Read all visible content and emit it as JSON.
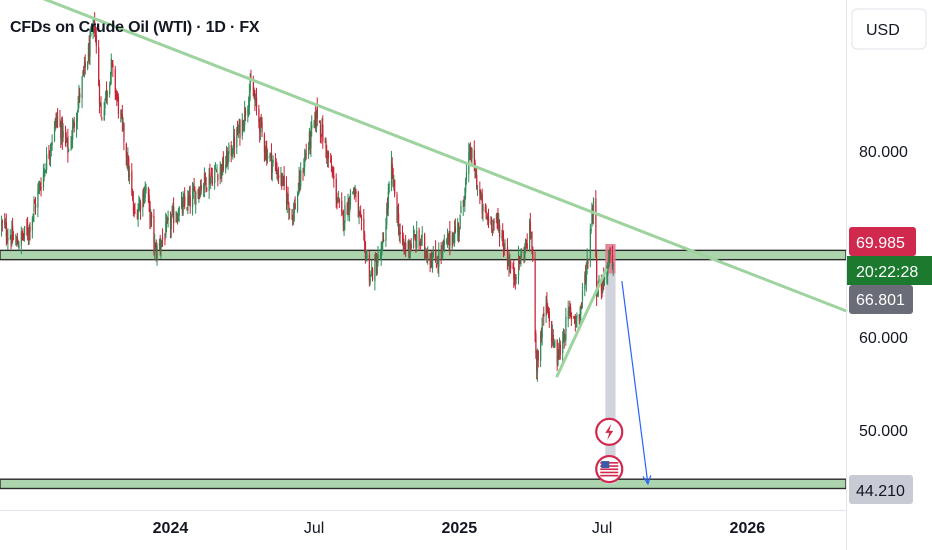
{
  "header": {
    "title": "CFDs on Crude Oil (WTI) · 1D · FX"
  },
  "price_scale": {
    "currency": "USD"
  },
  "badges": {
    "target_price": "69.985",
    "countdown": "20:22:28",
    "last_price": "66.801",
    "support_price": "44.210",
    "target_color": "#d1284e",
    "countdown_color": "#1b7a2e",
    "last_color": "#6a6d78",
    "support_color": "#c8cbd3"
  },
  "chart_data": {
    "type": "candlestick",
    "symbol": "CFDs on Crude Oil (WTI)",
    "interval": "1D",
    "source": "FX",
    "y_tick_labels": [
      "80.000",
      "60.000",
      "50.000"
    ],
    "x_tick_labels": [
      "2024",
      "Jul",
      "2025",
      "Jul",
      "2026"
    ],
    "x_tick_dates": [
      "2024-01-01",
      "2024-07-01",
      "2025-01-01",
      "2025-07-01",
      "2026-01-01"
    ],
    "ylim": [
      41.4,
      96.2
    ],
    "xlim": [
      "2023-05-30",
      "2026-05-06"
    ],
    "price_path": [
      [
        "2023-06-01",
        72.0
      ],
      [
        "2023-06-20",
        70.0
      ],
      [
        "2023-07-05",
        71.5
      ],
      [
        "2023-07-25",
        78.0
      ],
      [
        "2023-08-10",
        83.5
      ],
      [
        "2023-08-25",
        80.0
      ],
      [
        "2023-09-10",
        87.0
      ],
      [
        "2023-09-27",
        93.5
      ],
      [
        "2023-10-05",
        83.5
      ],
      [
        "2023-10-18",
        89.0
      ],
      [
        "2023-11-05",
        80.5
      ],
      [
        "2023-11-16",
        73.0
      ],
      [
        "2023-12-01",
        76.0
      ],
      [
        "2023-12-13",
        69.0
      ],
      [
        "2024-01-05",
        73.0
      ],
      [
        "2024-01-25",
        74.5
      ],
      [
        "2024-02-10",
        76.5
      ],
      [
        "2024-03-10",
        78.5
      ],
      [
        "2024-04-01",
        83.0
      ],
      [
        "2024-04-12",
        87.0
      ],
      [
        "2024-05-01",
        80.0
      ],
      [
        "2024-05-20",
        77.0
      ],
      [
        "2024-06-04",
        73.0
      ],
      [
        "2024-06-20",
        79.5
      ],
      [
        "2024-07-05",
        84.0
      ],
      [
        "2024-07-25",
        77.0
      ],
      [
        "2024-08-05",
        72.5
      ],
      [
        "2024-08-20",
        76.0
      ],
      [
        "2024-09-10",
        66.5
      ],
      [
        "2024-09-25",
        69.0
      ],
      [
        "2024-10-07",
        78.0
      ],
      [
        "2024-10-20",
        69.5
      ],
      [
        "2024-11-10",
        70.5
      ],
      [
        "2024-12-01",
        68.0
      ],
      [
        "2024-12-20",
        70.5
      ],
      [
        "2025-01-01",
        72.0
      ],
      [
        "2025-01-15",
        80.0
      ],
      [
        "2025-02-01",
        73.0
      ],
      [
        "2025-02-20",
        72.0
      ],
      [
        "2025-03-10",
        66.5
      ],
      [
        "2025-03-25",
        69.5
      ],
      [
        "2025-04-02",
        71.5
      ],
      [
        "2025-04-09",
        57.0
      ],
      [
        "2025-04-20",
        63.5
      ],
      [
        "2025-05-05",
        57.5
      ],
      [
        "2025-05-20",
        62.5
      ],
      [
        "2025-06-02",
        62.0
      ],
      [
        "2025-06-12",
        68.0
      ],
      [
        "2025-06-20",
        75.0
      ],
      [
        "2025-06-24",
        65.5
      ],
      [
        "2025-07-01",
        65.5
      ],
      [
        "2025-07-10",
        68.5
      ],
      [
        "2025-07-15",
        66.8
      ]
    ],
    "horizontal_levels": [
      {
        "price": 68.8,
        "band": 0.5
      },
      {
        "price": 44.21,
        "band": 0.5
      }
    ],
    "trendlines": [
      {
        "from": [
          "2023-07-10",
          96.8
        ],
        "to": [
          "2026-05-06",
          62.8
        ]
      },
      {
        "from": [
          "2025-05-05",
          55.8
        ],
        "to": [
          "2025-07-06",
          67.2
        ]
      }
    ],
    "short_position": {
      "start": "2025-07-05",
      "end": "2025-07-18",
      "entry": 66.801,
      "stop": 69.985,
      "target": 44.21
    },
    "projection_arrow": {
      "from": [
        "2025-07-26",
        66.0
      ],
      "to": [
        "2025-08-28",
        44.2
      ]
    },
    "event_markers": [
      {
        "date": "2025-07-10",
        "price": 49.8,
        "icon": "lightning-icon"
      },
      {
        "date": "2025-07-10",
        "price": 45.8,
        "icon": "us-flag-icon"
      }
    ],
    "colors": {
      "up": "#2e8b57",
      "down": "#c92233",
      "level": "#9dce9f",
      "trendline": "#9dd39e",
      "target_zone": "#d1d4dc",
      "stop_zone": "#e07a90",
      "arrow": "#2962ff"
    }
  }
}
